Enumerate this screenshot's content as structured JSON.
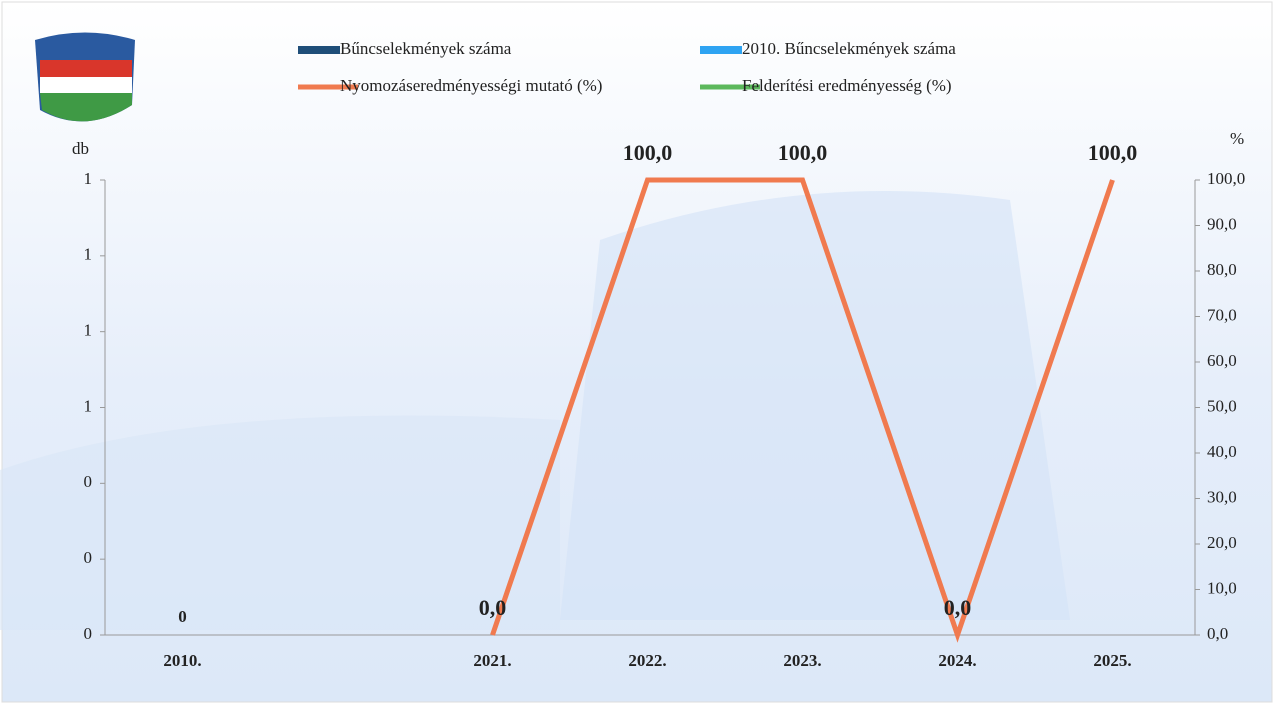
{
  "chart_data": {
    "type": "bar-line",
    "ylabel": "db",
    "y2label": "%",
    "categories": [
      "2010.",
      null,
      "2021.",
      "2022.",
      "2023.",
      "2024.",
      "2025."
    ],
    "series": [
      {
        "name": "Bűncselekmények száma",
        "type": "bar",
        "color": "#1f4e79",
        "values": [
          0,
          null,
          null,
          null,
          null,
          null,
          null
        ]
      },
      {
        "name": "2010. Bűncselekmények száma",
        "type": "bar",
        "color": "#2ea3f2",
        "values": [
          null,
          null,
          null,
          null,
          null,
          null,
          null
        ]
      },
      {
        "name": "Nyomozáseredményességi mutató (%)",
        "type": "line",
        "axis": "y2",
        "color": "#f07a4f",
        "values": [
          null,
          null,
          0,
          100,
          100,
          0,
          100
        ],
        "value_labels": [
          null,
          null,
          "0,0",
          "100,0",
          "100,0",
          "0,0",
          "100,0"
        ]
      },
      {
        "name": "Felderítési eredményesség (%)",
        "type": "line",
        "axis": "y2",
        "color": "#5cb85c",
        "values": [
          null,
          null,
          null,
          null,
          null,
          null,
          null
        ]
      }
    ],
    "ylim": [
      0,
      1.2
    ],
    "yticks": [
      0,
      {
        "value": 0.2,
        "label": "0"
      },
      {
        "value": 0.4,
        "label": "0"
      },
      {
        "value": 0.6,
        "label": "1"
      },
      {
        "value": 0.8,
        "label": "1"
      },
      {
        "value": 1.0,
        "label": "1"
      },
      {
        "value": 1.2,
        "label": "1"
      }
    ],
    "y2lim": [
      0,
      100
    ],
    "y2ticks": [
      {
        "value": 0,
        "label": "0,0"
      },
      {
        "value": 10,
        "label": "10,0"
      },
      {
        "value": 20,
        "label": "20,0"
      },
      {
        "value": 30,
        "label": "30,0"
      },
      {
        "value": 40,
        "label": "40,0"
      },
      {
        "value": 50,
        "label": "50,0"
      },
      {
        "value": 60,
        "label": "60,0"
      },
      {
        "value": 70,
        "label": "70,0"
      },
      {
        "value": 80,
        "label": "80,0"
      },
      {
        "value": 90,
        "label": "90,0"
      },
      {
        "value": 100,
        "label": "100,0"
      }
    ]
  }
}
